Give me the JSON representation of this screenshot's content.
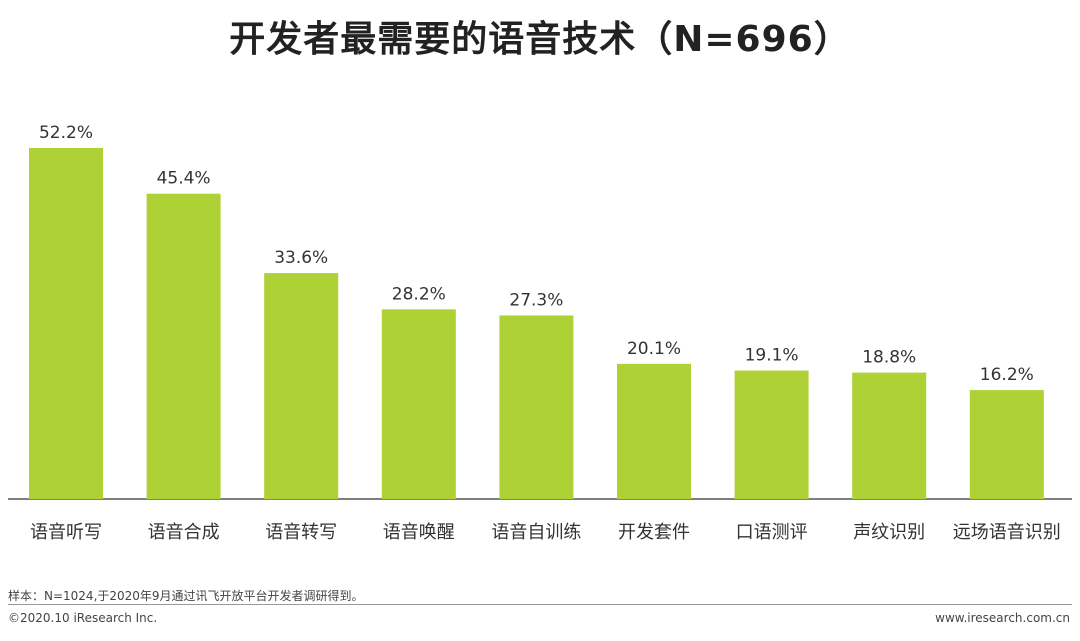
{
  "title": "开发者最需要的语音技术（N=696）",
  "colors": {
    "bar": "#aed136",
    "axis": "#555555"
  },
  "chart_data": {
    "type": "bar",
    "title": "开发者最需要的语音技术（N=696）",
    "categories": [
      "语音听写",
      "语音合成",
      "语音转写",
      "语音唤醒",
      "语音自训练",
      "开发套件",
      "口语测评",
      "声纹识别",
      "远场语音识别"
    ],
    "values": [
      52.2,
      45.4,
      33.6,
      28.2,
      27.3,
      20.1,
      19.1,
      18.8,
      16.2
    ],
    "value_labels": [
      "52.2%",
      "45.4%",
      "33.6%",
      "28.2%",
      "27.3%",
      "20.1%",
      "19.1%",
      "18.8%",
      "16.2%"
    ],
    "unit": "%",
    "ylim": [
      0,
      52.2
    ],
    "grid": false,
    "legend": "none"
  },
  "footer": {
    "sample": "样本：N=1024,于2020年9月通过讯飞开放平台开发者调研得到。",
    "copyright": "©2020.10 iResearch Inc.",
    "url": "www.iresearch.com.cn"
  }
}
